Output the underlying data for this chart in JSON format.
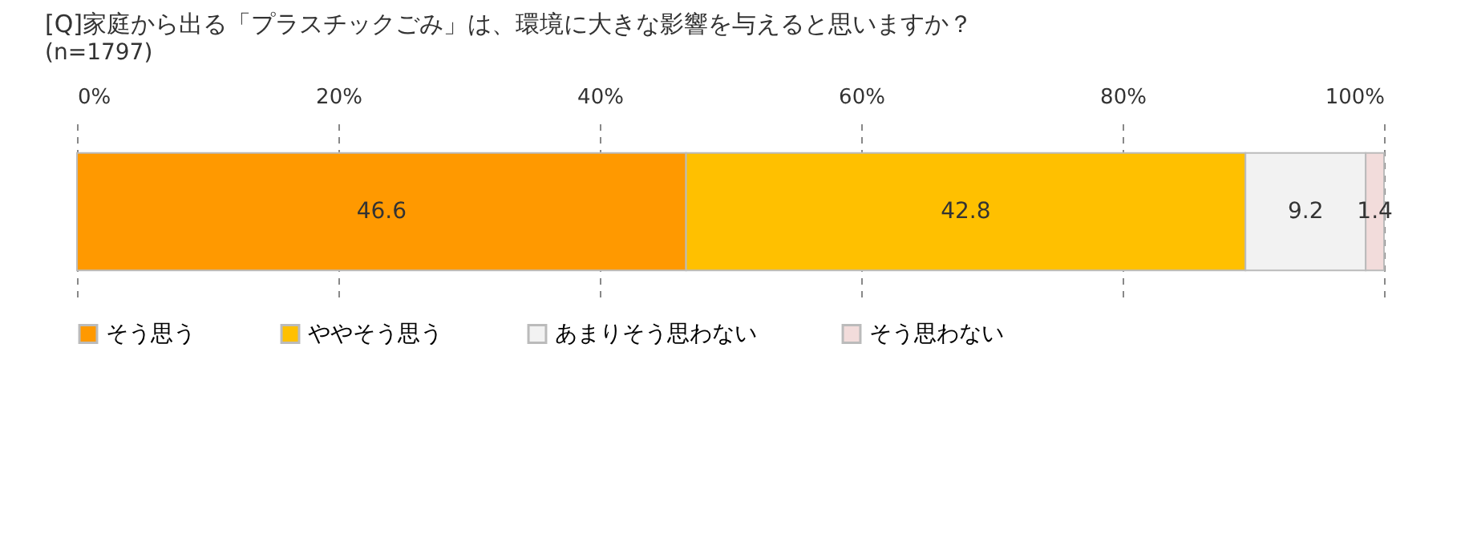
{
  "chart_data": {
    "type": "bar",
    "orientation": "horizontal",
    "stacked": true,
    "title": "[Q]家庭から出る「プラスチックごみ」は、環境に大きな影響を与えると思いますか？",
    "subtitle": "(n=1797)",
    "categories": [
      null
    ],
    "series": [
      {
        "name": "そう思う",
        "color": "#ff9900",
        "values": [
          46.6
        ]
      },
      {
        "name": "ややそう思う",
        "color": "#ffc000",
        "values": [
          42.8
        ]
      },
      {
        "name": "あまりそう思わない",
        "color": "#f2f2f2",
        "values": [
          9.2
        ]
      },
      {
        "name": "そう思わない",
        "color": "#f2dcdb",
        "values": [
          1.4
        ]
      }
    ],
    "xlim": [
      0,
      100
    ],
    "xticks": [
      {
        "value": 0,
        "label": "0%"
      },
      {
        "value": 20,
        "label": "20%"
      },
      {
        "value": 40,
        "label": "40%"
      },
      {
        "value": 60,
        "label": "60%"
      },
      {
        "value": 80,
        "label": "80%"
      },
      {
        "value": 100,
        "label": "100%"
      }
    ],
    "grid": "x",
    "legend": "bottom",
    "data_labels": true
  }
}
